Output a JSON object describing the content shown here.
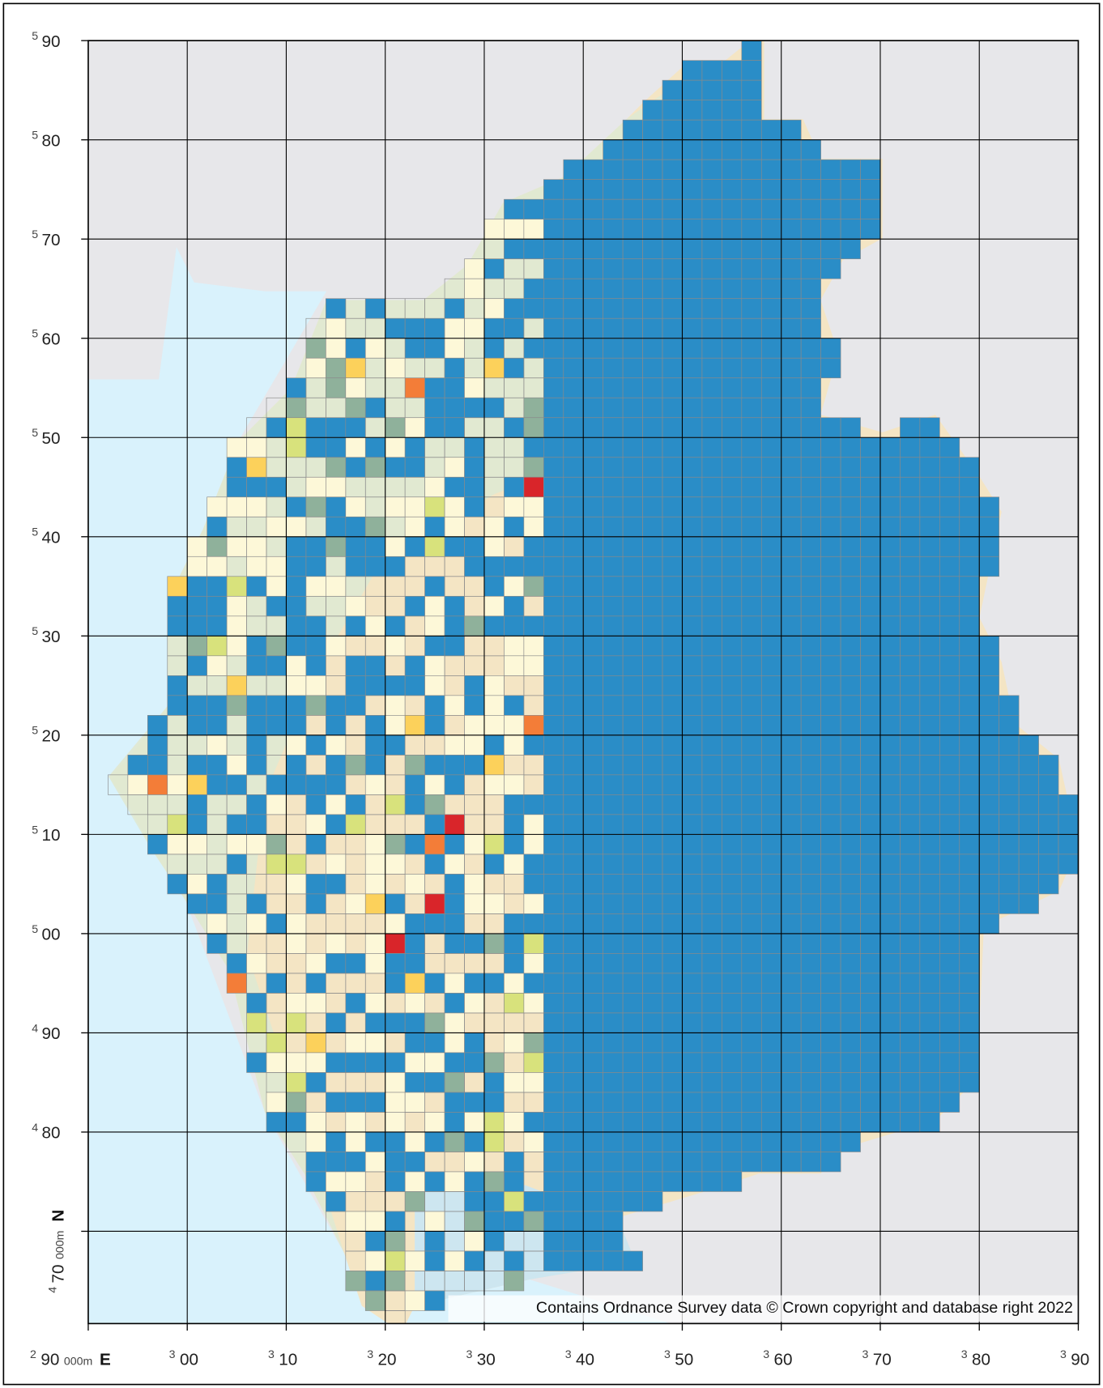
{
  "map": {
    "xlim": [
      290,
      390
    ],
    "ylim": [
      460.7,
      590
    ],
    "eastings": [
      {
        "value": 290,
        "prefix": "2",
        "label": "90",
        "unit": "000m",
        "axis": "E"
      },
      {
        "value": 300,
        "prefix": "3",
        "label": "00"
      },
      {
        "value": 310,
        "prefix": "3",
        "label": "10"
      },
      {
        "value": 320,
        "prefix": "3",
        "label": "20"
      },
      {
        "value": 330,
        "prefix": "3",
        "label": "30"
      },
      {
        "value": 340,
        "prefix": "3",
        "label": "40"
      },
      {
        "value": 350,
        "prefix": "3",
        "label": "50"
      },
      {
        "value": 360,
        "prefix": "3",
        "label": "60"
      },
      {
        "value": 370,
        "prefix": "3",
        "label": "70"
      },
      {
        "value": 380,
        "prefix": "3",
        "label": "80"
      },
      {
        "value": 390,
        "prefix": "3",
        "label": "90"
      }
    ],
    "northings": [
      {
        "value": 590,
        "prefix": "5",
        "label": "90"
      },
      {
        "value": 580,
        "prefix": "5",
        "label": "80"
      },
      {
        "value": 570,
        "prefix": "5",
        "label": "70"
      },
      {
        "value": 560,
        "prefix": "5",
        "label": "60"
      },
      {
        "value": 550,
        "prefix": "5",
        "label": "50"
      },
      {
        "value": 540,
        "prefix": "5",
        "label": "40"
      },
      {
        "value": 530,
        "prefix": "5",
        "label": "30"
      },
      {
        "value": 520,
        "prefix": "5",
        "label": "20"
      },
      {
        "value": 510,
        "prefix": "5",
        "label": "10"
      },
      {
        "value": 500,
        "prefix": "5",
        "label": "00"
      },
      {
        "value": 490,
        "prefix": "4",
        "label": "90"
      },
      {
        "value": 480,
        "prefix": "4",
        "label": "80"
      },
      {
        "value": 470,
        "prefix": "4",
        "label": "70",
        "unit": "000m",
        "axis": "N"
      }
    ],
    "attribution": "Contains Ordnance Survey data © Crown copyright and database right 2022"
  }
}
